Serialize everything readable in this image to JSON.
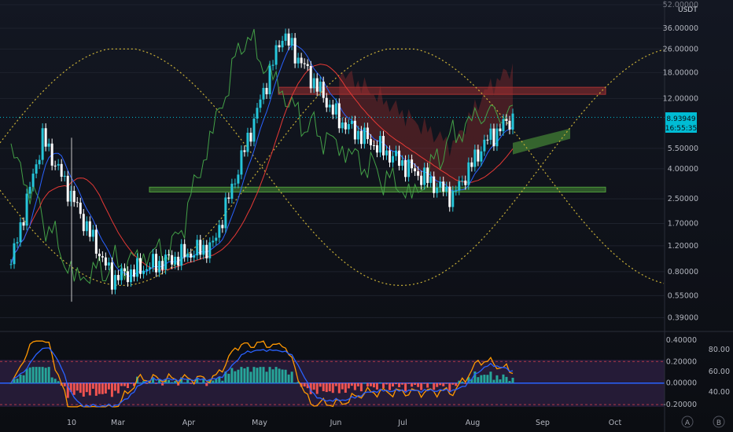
{
  "chart_data": [
    {
      "type": "candlestick",
      "title": "",
      "y_scale": "log",
      "currency": "USDT",
      "ylim": [
        0.33,
        52.0
      ],
      "ticks": {
        "y": [
          {
            "value": 52.0,
            "label": "52.00000"
          },
          {
            "value": 36.0,
            "label": "36.00000"
          },
          {
            "value": 26.0,
            "label": "26.00000"
          },
          {
            "value": 18.0,
            "label": "18.00000"
          },
          {
            "value": 12.0,
            "label": "12.00000"
          },
          {
            "value": 5.5,
            "label": "5.50000"
          },
          {
            "value": 4.0,
            "label": "4.00000"
          },
          {
            "value": 2.5,
            "label": "2.50000"
          },
          {
            "value": 1.7,
            "label": "1.70000"
          },
          {
            "value": 1.2,
            "label": "1.20000"
          },
          {
            "value": 0.8,
            "label": "0.80000"
          },
          {
            "value": 0.55,
            "label": "0.55000"
          },
          {
            "value": 0.39,
            "label": "0.39000"
          }
        ]
      },
      "x_ticks": [
        "10",
        "Mar",
        "Apr",
        "May",
        "Jun",
        "Jul",
        "Aug",
        "Sep",
        "Oct"
      ],
      "price_badge": {
        "value": "8.93949",
        "countdown": "16:55:35"
      },
      "zones": [
        {
          "kind": "resistance",
          "low": 12.8,
          "high": 14.3,
          "color": "#a83232"
        },
        {
          "kind": "support",
          "low": 2.78,
          "high": 3.0,
          "color": "#4e9a3a"
        }
      ],
      "colors": {
        "up": "#26c6da",
        "down": "#ffffff",
        "kijun": "#e53935",
        "tenkan": "#2962ff",
        "lagging": "#43a047",
        "cycle": "#c9b037",
        "cloud_bull": "#4e9a3a",
        "cloud_bear": "#a83232"
      },
      "key_points": [
        {
          "label": "start",
          "value": 0.9
        },
        {
          "label": "wick-high",
          "value": 6.5
        },
        {
          "label": "Mar-low",
          "value": 0.72
        },
        {
          "label": "Apr",
          "value": 1.2
        },
        {
          "label": "May-peak",
          "value": 33.0
        },
        {
          "label": "Jun",
          "value": 8.5
        },
        {
          "label": "Jul",
          "value": 3.8
        },
        {
          "label": "Jul-low",
          "value": 2.6
        },
        {
          "label": "Aug",
          "value": 6.0
        },
        {
          "label": "last",
          "value": 8.93949
        }
      ]
    },
    {
      "type": "oscillator",
      "ylim": [
        -0.25,
        0.45
      ],
      "ticks_left": [
        {
          "value": 0.4,
          "label": "0.40000"
        },
        {
          "value": 0.2,
          "label": "0.20000"
        },
        {
          "value": 0.0,
          "label": "0.00000"
        },
        {
          "value": -0.2,
          "label": "-0.20000"
        }
      ],
      "ticks_right": [
        "80.00",
        "60.00",
        "40.00"
      ],
      "series": [
        {
          "kind": "histogram",
          "color_pos": "#26a69a",
          "color_neg": "#ef5350"
        },
        {
          "kind": "line",
          "color": "#ff9800"
        },
        {
          "kind": "line",
          "color": "#2962ff"
        }
      ]
    }
  ],
  "buttons": {
    "auto": "A",
    "log": "B"
  }
}
